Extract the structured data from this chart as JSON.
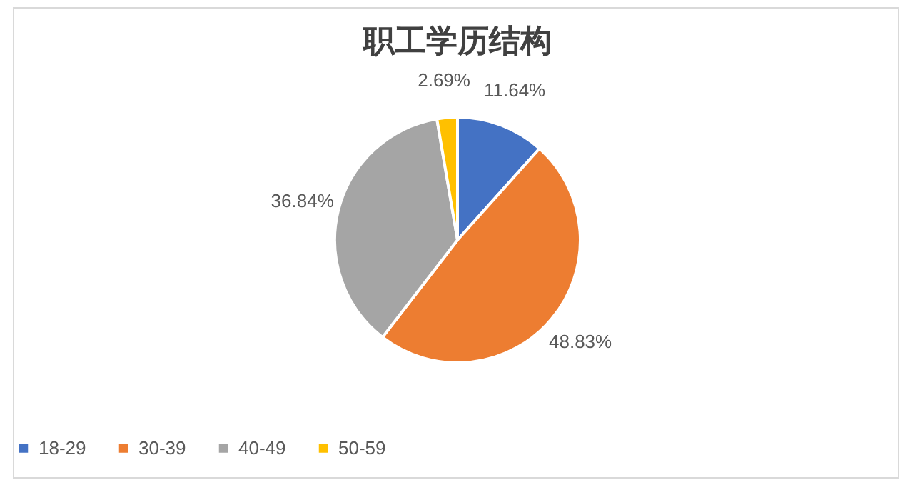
{
  "chart_data": {
    "type": "pie",
    "title": "职工学历结构",
    "categories": [
      "18-29",
      "30-39",
      "40-49",
      "50-59"
    ],
    "values": [
      11.64,
      48.83,
      36.84,
      2.69
    ],
    "colors": [
      "#4472c4",
      "#ed7d31",
      "#a5a5a5",
      "#ffc000"
    ],
    "value_labels": [
      "11.64%",
      "48.83%",
      "36.84%",
      "2.69%"
    ],
    "legend": "bottom"
  }
}
